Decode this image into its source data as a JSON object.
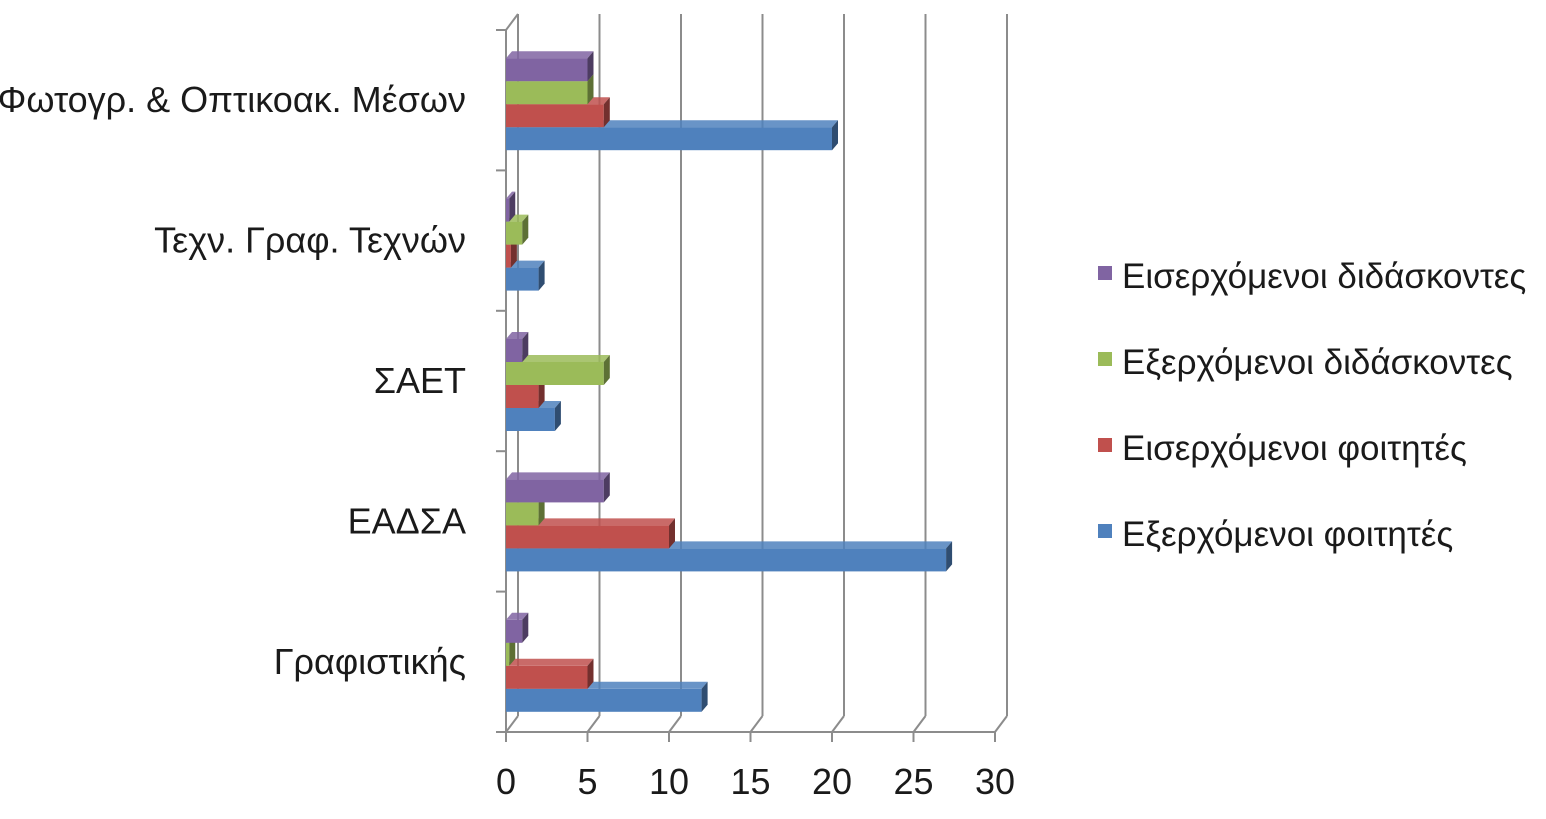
{
  "chart_data": {
    "type": "bar",
    "orientation": "horizontal",
    "three_d": true,
    "categories": [
      "Γραφιστικής",
      "ΕΑΔΣΑ",
      "ΣΑΕΤ",
      "Τεχν. Γραφ. Τεχνών",
      "Φωτογρ. & Οπτικοακ. Μέσων"
    ],
    "series": [
      {
        "name": "Εξερχόμενοι φοιτητές",
        "color": "#4F81BD",
        "values": [
          12,
          27,
          3,
          2,
          20
        ]
      },
      {
        "name": "Εισερχόμενοι φοιτητές",
        "color": "#C0504D",
        "values": [
          5,
          10,
          2,
          0.3,
          6
        ]
      },
      {
        "name": "Εξερχόμενοι διδάσκοντες",
        "color": "#9BBB59",
        "values": [
          0.2,
          2,
          6,
          1,
          5
        ]
      },
      {
        "name": "Εισερχόμενοι διδάσκοντες",
        "color": "#8064A2",
        "values": [
          1,
          6,
          1,
          0.2,
          5
        ]
      }
    ],
    "xlim": [
      0,
      30
    ],
    "x_ticks": [
      "0",
      "5",
      "10",
      "15",
      "20",
      "25",
      "30"
    ],
    "grid": true,
    "legend_position": "right",
    "legend_order": [
      "Εισερχόμενοι διδάσκοντες",
      "Εξερχόμενοι διδάσκοντες",
      "Εισερχόμενοι φοιτητές",
      "Εξερχόμενοι φοιτητές"
    ]
  }
}
